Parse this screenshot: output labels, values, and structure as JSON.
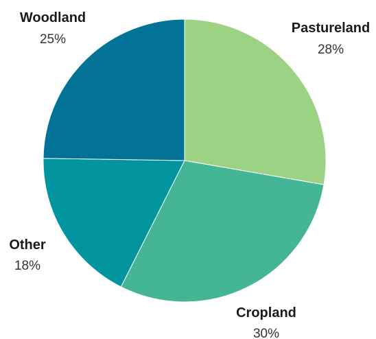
{
  "chart_data": {
    "type": "pie",
    "title": "",
    "start": "12 o'clock",
    "direction": "clockwise",
    "slices": [
      {
        "label": "Pastureland",
        "value": 28,
        "value_label": "28%",
        "color": "#9bd283"
      },
      {
        "label": "Cropland",
        "value": 30,
        "value_label": "30%",
        "color": "#45b695"
      },
      {
        "label": "Other",
        "value": 18,
        "value_label": "18%",
        "color": "#03959f"
      },
      {
        "label": "Woodland",
        "value": 25,
        "value_label": "25%",
        "color": "#027296"
      }
    ]
  }
}
